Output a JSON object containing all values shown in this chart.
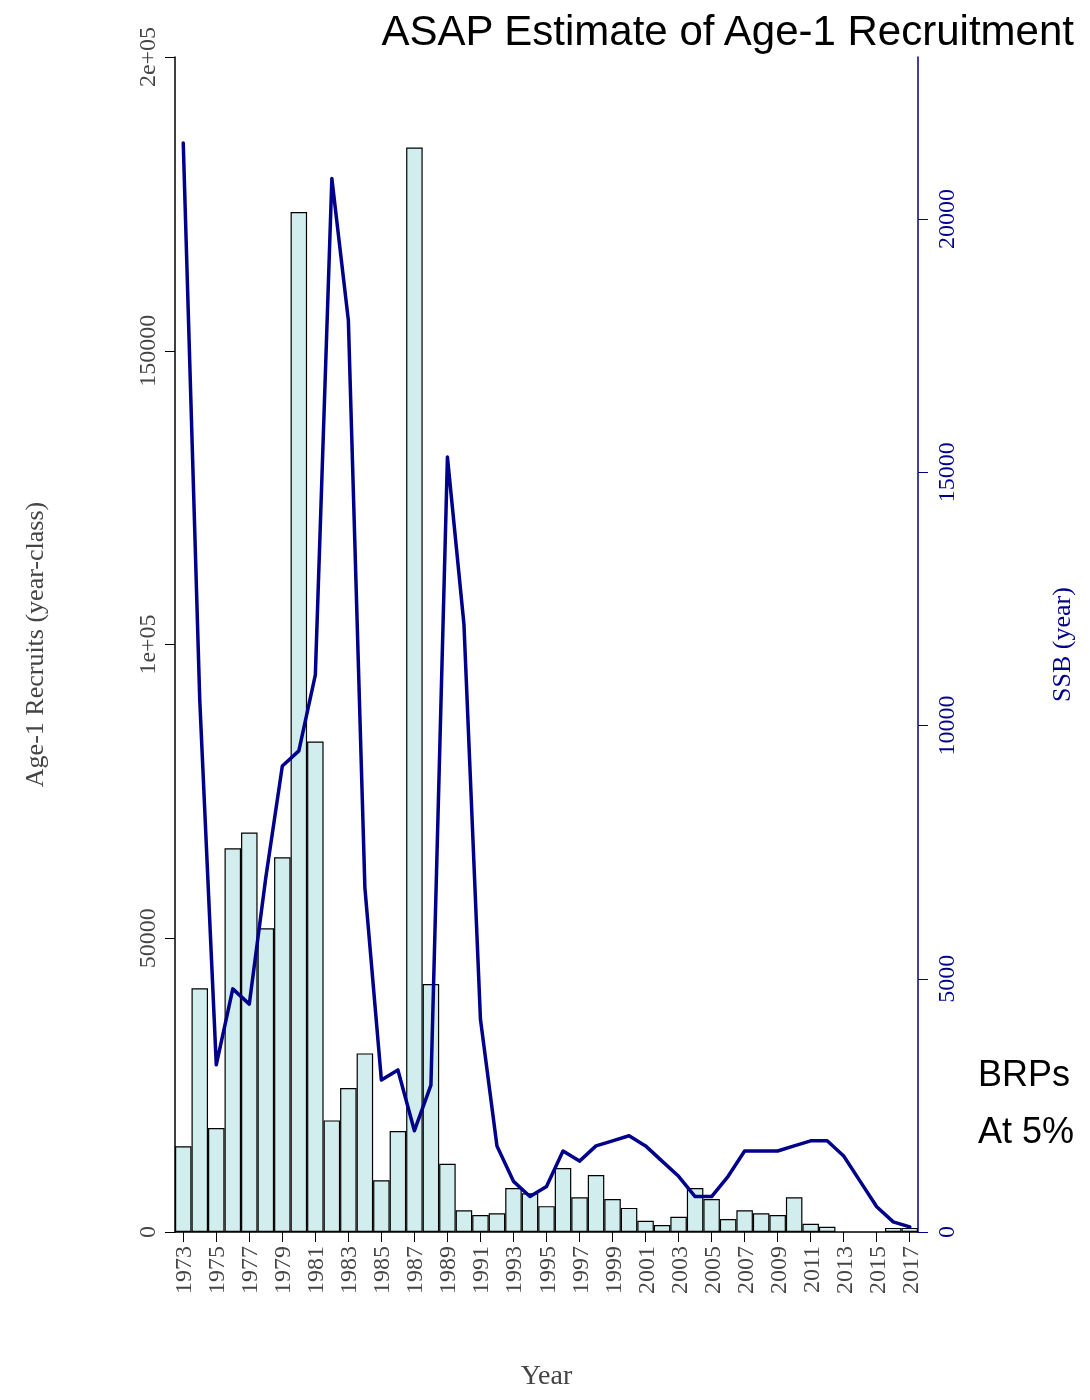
{
  "chart_data": {
    "type": "bar",
    "title": "ASAP Estimate of Age-1 Recruitment",
    "xlabel": "Year",
    "ylabel": "Age-1 Recruits (year-class)",
    "y2label": "SSB (year)",
    "categories": [
      "1973",
      null,
      "1975",
      null,
      "1977",
      null,
      "1979",
      null,
      "1981",
      null,
      "1983",
      null,
      "1985",
      null,
      "1987",
      null,
      "1989",
      null,
      "1991",
      null,
      "1993",
      null,
      "1995",
      null,
      "1997",
      null,
      "1999",
      null,
      "2001",
      null,
      "2003",
      null,
      "2005",
      null,
      "2007",
      null,
      "2009",
      null,
      "2011",
      null,
      "2013",
      null,
      "2015",
      null,
      "2017"
    ],
    "series": [
      {
        "color": "#d1eded",
        "values": [
          14600,
          41500,
          17700,
          65300,
          68000,
          51700,
          63800,
          173600,
          83500,
          19000,
          24500,
          30400,
          8800,
          17200,
          184600,
          42200,
          11600,
          3700,
          2900,
          3200,
          7500,
          6600,
          4400,
          10900,
          5900,
          9700,
          5600,
          4100,
          1900,
          1200,
          2600,
          7500,
          5600,
          2200,
          3700,
          3200,
          2900,
          5900,
          1400,
          900,
          0,
          0,
          0,
          700,
          700
        ]
      },
      {
        "type": "line",
        "axis": "y2",
        "color": "#00008b",
        "values": [
          21500,
          10500,
          3300,
          4800,
          4500,
          7000,
          9200,
          9500,
          11000,
          20800,
          18000,
          6800,
          3000,
          3200,
          2000,
          2900,
          15300,
          12000,
          4200,
          1700,
          1000,
          700,
          900,
          1600,
          1400,
          1700,
          1800,
          1900,
          1700,
          1400,
          1100,
          700,
          700,
          1100,
          1600,
          1600,
          1600,
          1700,
          1800,
          1800,
          1500,
          1000,
          500,
          200,
          100
        ]
      }
    ],
    "ylim": [
      0,
      200000
    ],
    "yticks": [
      0,
      50000,
      {
        "value": 100000,
        "label": "1e+05"
      },
      150000,
      {
        "value": 200000,
        "label": "2e+05"
      }
    ],
    "y2lim": [
      0,
      23200
    ],
    "y2ticks": [
      0,
      5000,
      10000,
      15000,
      20000
    ],
    "grid": false,
    "line_style": "solid",
    "marker": "none",
    "annotations": [
      "BRPs",
      "At 5%"
    ]
  }
}
